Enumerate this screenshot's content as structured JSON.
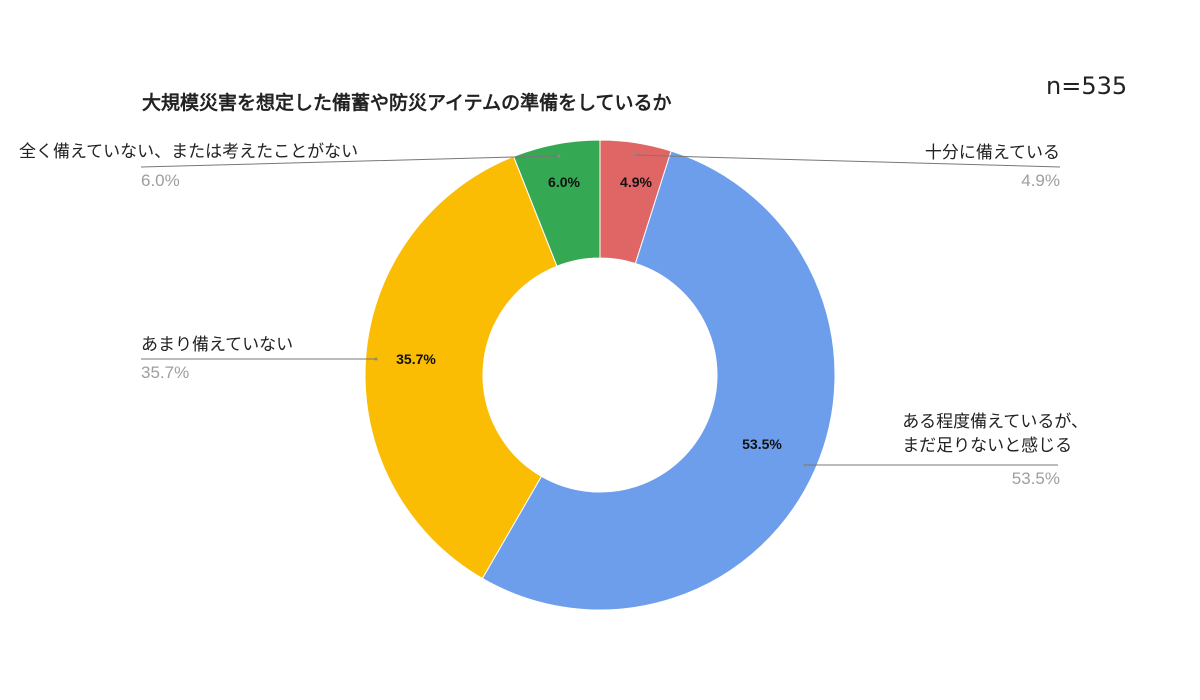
{
  "title": "大規模災害を想定した備蓄や防災アイテムの準備をしているか",
  "sample_size": "n=535",
  "slices": [
    {
      "label": "十分に備えている",
      "label_lines": [
        "十分に備えている"
      ],
      "value": 4.9,
      "pct_text": "4.9%",
      "color": "#e06666"
    },
    {
      "label": "ある程度備えているが、まだ足りないと感じる",
      "label_lines": [
        "ある程度備えているが、",
        "まだ足りないと感じる"
      ],
      "value": 53.5,
      "pct_text": "53.5%",
      "color": "#6d9eeb"
    },
    {
      "label": "あまり備えていない",
      "label_lines": [
        "あまり備えていない"
      ],
      "value": 35.7,
      "pct_text": "35.7%",
      "color": "#fbbc04"
    },
    {
      "label": "全く備えていない、または考えたことがない",
      "label_lines": [
        "全く備えていない、または考えたことがない"
      ],
      "value": 6.0,
      "pct_text": "6.0%",
      "color": "#34a853"
    }
  ],
  "chart_data": {
    "type": "pie",
    "subtype": "donut",
    "title": "大規模災害を想定した備蓄や防災アイテムの準備をしているか",
    "annotation": "n=535",
    "categories": [
      "十分に備えている",
      "ある程度備えているが、まだ足りないと感じる",
      "あまり備えていない",
      "全く備えていない、または考えたことがない"
    ],
    "values": [
      4.9,
      53.5,
      35.7,
      6.0
    ],
    "unit": "%",
    "colors": [
      "#e06666",
      "#6d9eeb",
      "#fbbc04",
      "#34a853"
    ],
    "start_angle": "12 o'clock, clockwise",
    "legend": "none (callout labels with leader lines)",
    "data_labels": [
      "4.9%",
      "53.5%",
      "35.7%",
      "6.0%"
    ]
  }
}
